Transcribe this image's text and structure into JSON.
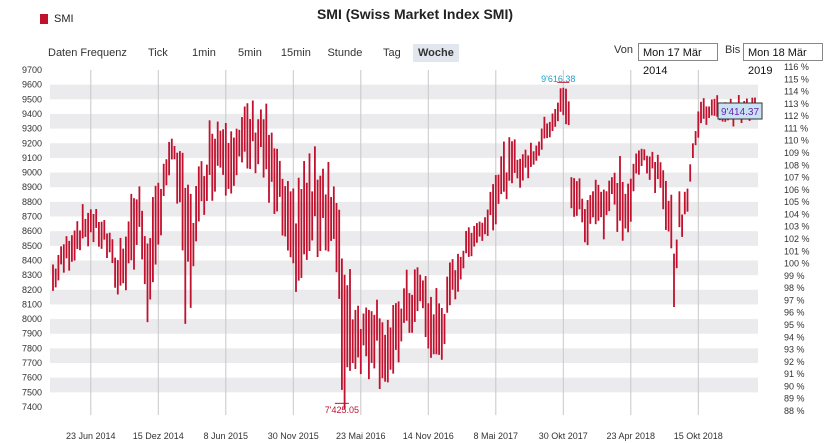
{
  "chart_data": {
    "type": "bar",
    "subtype": "ohlc-high-low-weekly",
    "title": "SMI (Swiss Market Index SMI)",
    "legend": {
      "entries": [
        "SMI"
      ],
      "position": "top-left"
    },
    "yleft": {
      "range": [
        7400,
        9700
      ],
      "ticks": [
        "9700",
        "9600",
        "9500",
        "9400",
        "9300",
        "9200",
        "9100",
        "9000",
        "8900",
        "8800",
        "8700",
        "8600",
        "8500",
        "8400",
        "8300",
        "8200",
        "8100",
        "8000",
        "7900",
        "7800",
        "7700",
        "7600",
        "7500",
        "7400"
      ]
    },
    "yright": {
      "ticks": [
        "116 %",
        "115 %",
        "114 %",
        "113 %",
        "112 %",
        "111 %",
        "110 %",
        "109 %",
        "108 %",
        "107 %",
        "106 %",
        "105 %",
        "104 %",
        "103 %",
        "102 %",
        "101 %",
        "100 %",
        "99 %",
        "98 %",
        "97 %",
        "96 %",
        "95 %",
        "94 %",
        "93 %",
        "92 %",
        "91 %",
        "90 %",
        "89 %",
        "88 %"
      ]
    },
    "x_ticks": [
      "23 Jun 2014",
      "15 Dez 2014",
      "8 Jun 2015",
      "30 Nov 2015",
      "23 Mai 2016",
      "14 Nov 2016",
      "8 Mai 2017",
      "30 Okt 2017",
      "23 Apr 2018",
      "15 Okt 2018"
    ],
    "grid": true,
    "annotations": {
      "high": "9'616.38",
      "low": "7'425.05",
      "last": "9'414.37"
    },
    "series": [
      {
        "name": "SMI",
        "anchors": [
          [
            0,
            8150,
            8400
          ],
          [
            4,
            8300,
            8550
          ],
          [
            9,
            8450,
            8700
          ],
          [
            14,
            8550,
            8780
          ],
          [
            19,
            8450,
            8700
          ],
          [
            24,
            8150,
            8450
          ],
          [
            28,
            8250,
            8850
          ],
          [
            32,
            8500,
            8900
          ],
          [
            36,
            7900,
            8600
          ],
          [
            41,
            8800,
            9150
          ],
          [
            45,
            9050,
            9250
          ],
          [
            49,
            7850,
            9050
          ],
          [
            53,
            8450,
            8900
          ],
          [
            57,
            8800,
            9300
          ],
          [
            61,
            8950,
            9450
          ],
          [
            65,
            8900,
            9480
          ],
          [
            69,
            8950,
            9350
          ],
          [
            73,
            8950,
            9520
          ],
          [
            77,
            9000,
            9550
          ],
          [
            81,
            8650,
            9300
          ],
          [
            84,
            8700,
            9050
          ],
          [
            88,
            8200,
            8800
          ],
          [
            92,
            8250,
            9000
          ],
          [
            96,
            8400,
            9100
          ],
          [
            100,
            8550,
            9150
          ],
          [
            104,
            8350,
            9000
          ],
          [
            107,
            7450,
            8600
          ],
          [
            111,
            7650,
            8250
          ],
          [
            115,
            7650,
            8100
          ],
          [
            119,
            7700,
            8250
          ],
          [
            123,
            7550,
            8050
          ],
          [
            126,
            7500,
            8000
          ],
          [
            129,
            7800,
            8250
          ],
          [
            132,
            7850,
            8300
          ],
          [
            136,
            8050,
            8350
          ],
          [
            140,
            7650,
            8200
          ],
          [
            144,
            7700,
            8150
          ],
          [
            148,
            8100,
            8400
          ],
          [
            152,
            8300,
            8550
          ],
          [
            156,
            8500,
            8700
          ],
          [
            160,
            8550,
            8700
          ],
          [
            163,
            8650,
            9100
          ],
          [
            167,
            8800,
            9150
          ],
          [
            171,
            8900,
            9200
          ],
          [
            175,
            8950,
            9150
          ],
          [
            179,
            9050,
            9250
          ],
          [
            183,
            9200,
            9400
          ],
          [
            187,
            9300,
            9550
          ],
          [
            189,
            9350,
            9616
          ],
          [
            191,
            9250,
            9500
          ],
          [
            192,
            8750,
            9050
          ],
          [
            195,
            8650,
            8950
          ],
          [
            198,
            8450,
            8800
          ],
          [
            201,
            8700,
            9050
          ],
          [
            204,
            8550,
            8950
          ],
          [
            207,
            8750,
            9000
          ],
          [
            210,
            8600,
            9050
          ],
          [
            213,
            8550,
            8900
          ],
          [
            216,
            8900,
            9150
          ],
          [
            219,
            9050,
            9200
          ],
          [
            222,
            8900,
            9150
          ],
          [
            225,
            8800,
            9100
          ],
          [
            228,
            8600,
            9000
          ],
          [
            230,
            8150,
            8600
          ],
          [
            232,
            8450,
            8850
          ],
          [
            235,
            8750,
            8950
          ],
          [
            237,
            9050,
            9250
          ],
          [
            239,
            9200,
            9414
          ],
          [
            240,
            9350,
            9500
          ]
        ]
      }
    ],
    "n_weeks": 261
  },
  "toolbar": {
    "label": "Daten Frequenz",
    "tabs": [
      "Tick",
      "1min",
      "5min",
      "15min",
      "Stunde",
      "Tag",
      "Woche"
    ],
    "active": "Woche"
  },
  "range": {
    "from_label": "Von",
    "from_value": "Mon 17 Mär 2014",
    "to_label": "Bis",
    "to_value": "Mon 18 Mär 2019"
  },
  "colors": {
    "bar": "#c0112e",
    "band": "#ebebee",
    "high_label": "#1f9fc7",
    "low_label": "#c0112e",
    "last_box": "#c9e3f2",
    "last_text": "#6a22b5"
  }
}
